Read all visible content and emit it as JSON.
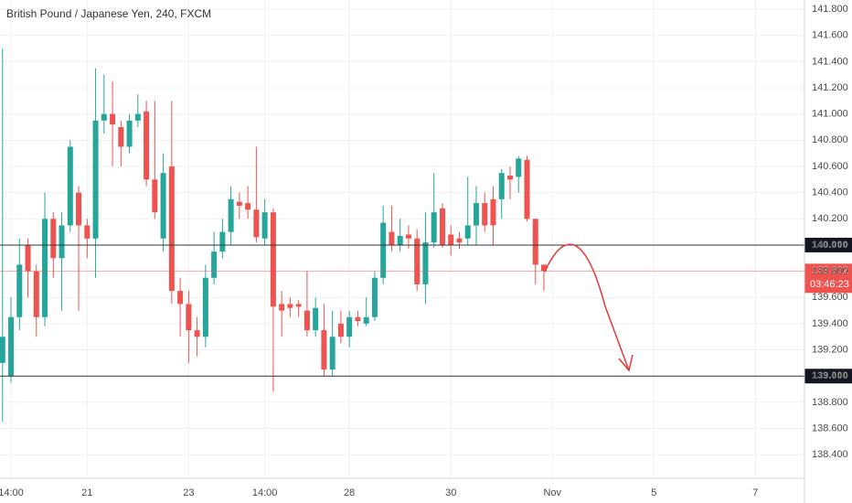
{
  "chart_data": {
    "type": "candlestick",
    "title": "British Pound / Japanese Yen, 240, FXCM",
    "up_color": "#26a69a",
    "down_color": "#ef5350",
    "grid": true,
    "categories": [
      null,
      null,
      null,
      null,
      null,
      null,
      null,
      null,
      null,
      null,
      null,
      null,
      null,
      null,
      null,
      null,
      null,
      null,
      null,
      null,
      null,
      null,
      null,
      null,
      null,
      null,
      null,
      null,
      null,
      null,
      null,
      null,
      null,
      null,
      null,
      null,
      null,
      null,
      null,
      null,
      null,
      null,
      null,
      null,
      null,
      null,
      null,
      null,
      null,
      null,
      null,
      null,
      null,
      null,
      null,
      null,
      null,
      null,
      null,
      null,
      null,
      null,
      null,
      null,
      null
    ],
    "open": [
      139.1,
      139.0,
      139.45,
      140.0,
      139.8,
      139.45,
      140.2,
      139.9,
      140.15,
      140.4,
      140.15,
      140.05,
      140.95,
      141.0,
      140.9,
      140.75,
      140.95,
      141.02,
      140.5,
      140.05,
      140.6,
      139.65,
      139.55,
      139.35,
      139.3,
      139.75,
      139.95,
      140.1,
      140.33,
      140.32,
      140.27,
      140.05,
      140.25,
      139.55,
      139.55,
      139.55,
      139.5,
      139.35,
      139.35,
      139.05,
      139.4,
      139.3,
      139.45,
      139.4,
      139.45,
      139.75,
      140.1,
      140.0,
      140.08,
      140.05,
      139.7,
      140.02,
      140.28,
      140.08,
      140.05,
      140.05,
      140.15,
      140.32,
      140.35,
      140.35,
      140.53,
      140.52,
      140.65,
      140.2,
      139.85
    ],
    "high": [
      141.5,
      139.6,
      140.05,
      140.05,
      139.85,
      140.4,
      140.25,
      140.25,
      140.8,
      140.45,
      140.2,
      141.35,
      141.3,
      141.25,
      140.95,
      141.0,
      141.15,
      141.1,
      141.1,
      140.7,
      141.1,
      139.75,
      139.65,
      139.45,
      139.85,
      140.1,
      140.2,
      140.45,
      140.4,
      140.45,
      140.75,
      140.35,
      140.28,
      139.65,
      139.6,
      139.58,
      139.8,
      139.6,
      139.55,
      139.5,
      139.5,
      139.5,
      139.5,
      139.6,
      139.8,
      140.3,
      140.3,
      140.2,
      140.15,
      140.12,
      140.25,
      140.55,
      140.32,
      140.15,
      140.1,
      140.52,
      140.45,
      140.4,
      140.45,
      140.58,
      140.6,
      140.68,
      140.68,
      140.2,
      139.85
    ],
    "low": [
      138.65,
      138.95,
      139.35,
      139.6,
      139.3,
      139.38,
      139.75,
      139.5,
      140.1,
      139.5,
      139.9,
      139.75,
      140.85,
      140.6,
      140.6,
      140.7,
      140.9,
      140.45,
      140.2,
      139.95,
      139.55,
      139.3,
      139.1,
      139.15,
      139.22,
      139.7,
      139.9,
      140.0,
      140.2,
      140.2,
      140.02,
      140.0,
      138.88,
      139.3,
      139.45,
      139.45,
      139.3,
      139.3,
      139.0,
      139.0,
      139.25,
      139.22,
      139.38,
      139.38,
      139.42,
      139.7,
      139.95,
      139.95,
      139.97,
      139.65,
      139.55,
      139.98,
      139.98,
      139.92,
      139.97,
      140.0,
      140.0,
      140.1,
      140.0,
      140.2,
      140.35,
      140.4,
      140.18,
      139.7,
      139.65
    ],
    "close": [
      139.3,
      139.45,
      139.85,
      139.8,
      139.45,
      140.2,
      139.9,
      140.15,
      140.75,
      140.15,
      140.05,
      140.95,
      141.0,
      140.92,
      140.75,
      140.95,
      141.0,
      140.5,
      140.25,
      140.55,
      139.65,
      139.55,
      139.35,
      139.3,
      139.75,
      139.95,
      140.1,
      140.35,
      140.3,
      140.27,
      140.06,
      140.25,
      139.53,
      139.5,
      139.52,
      139.53,
      139.35,
      139.52,
      139.05,
      139.3,
      139.3,
      139.45,
      139.42,
      139.45,
      139.75,
      140.17,
      140.0,
      140.07,
      140.05,
      139.7,
      140.02,
      140.25,
      140.0,
      140.0,
      140.02,
      140.15,
      140.32,
      140.15,
      140.15,
      140.55,
      140.5,
      140.66,
      140.2,
      139.85,
      139.802
    ],
    "xlim": [
      -0.3,
      94.8
    ],
    "xticks": [
      {
        "value": 1,
        "label": "14:00"
      },
      {
        "value": 10,
        "label": "21"
      },
      {
        "value": 22,
        "label": "23"
      },
      {
        "value": 31,
        "label": "14:00"
      },
      {
        "value": 41,
        "label": "28"
      },
      {
        "value": 53,
        "label": "30"
      },
      {
        "value": 65,
        "label": "Nov"
      },
      {
        "value": 77,
        "label": "5"
      },
      {
        "value": 89,
        "label": "7"
      }
    ],
    "ylim": [
      138.22,
      141.87
    ],
    "yticks": [
      {
        "value": 138.4,
        "label": "138.400"
      },
      {
        "value": 138.6,
        "label": "138.600"
      },
      {
        "value": 138.8,
        "label": "138.800"
      },
      {
        "value": 139.0,
        "label": "139.000"
      },
      {
        "value": 139.2,
        "label": "139.200"
      },
      {
        "value": 139.4,
        "label": "139.400"
      },
      {
        "value": 139.6,
        "label": "139.600"
      },
      {
        "value": 139.8,
        "label": "139.800"
      },
      {
        "value": 140.0,
        "label": "140.000"
      },
      {
        "value": 140.2,
        "label": "140.200"
      },
      {
        "value": 140.4,
        "label": "140.400"
      },
      {
        "value": 140.6,
        "label": "140.600"
      },
      {
        "value": 140.8,
        "label": "140.800"
      },
      {
        "value": 141.0,
        "label": "141.000"
      },
      {
        "value": 141.2,
        "label": "141.200"
      },
      {
        "value": 141.4,
        "label": "141.400"
      },
      {
        "value": 141.6,
        "label": "141.600"
      },
      {
        "value": 141.8,
        "label": "141.800"
      }
    ],
    "hlines": [
      {
        "value": 140.0,
        "label": "140.000"
      },
      {
        "value": 139.0,
        "label": "139.000"
      }
    ],
    "last_price": {
      "value": 139.802,
      "label": "139.802",
      "countdown": "03:46:23",
      "color": "#ef5350"
    }
  }
}
